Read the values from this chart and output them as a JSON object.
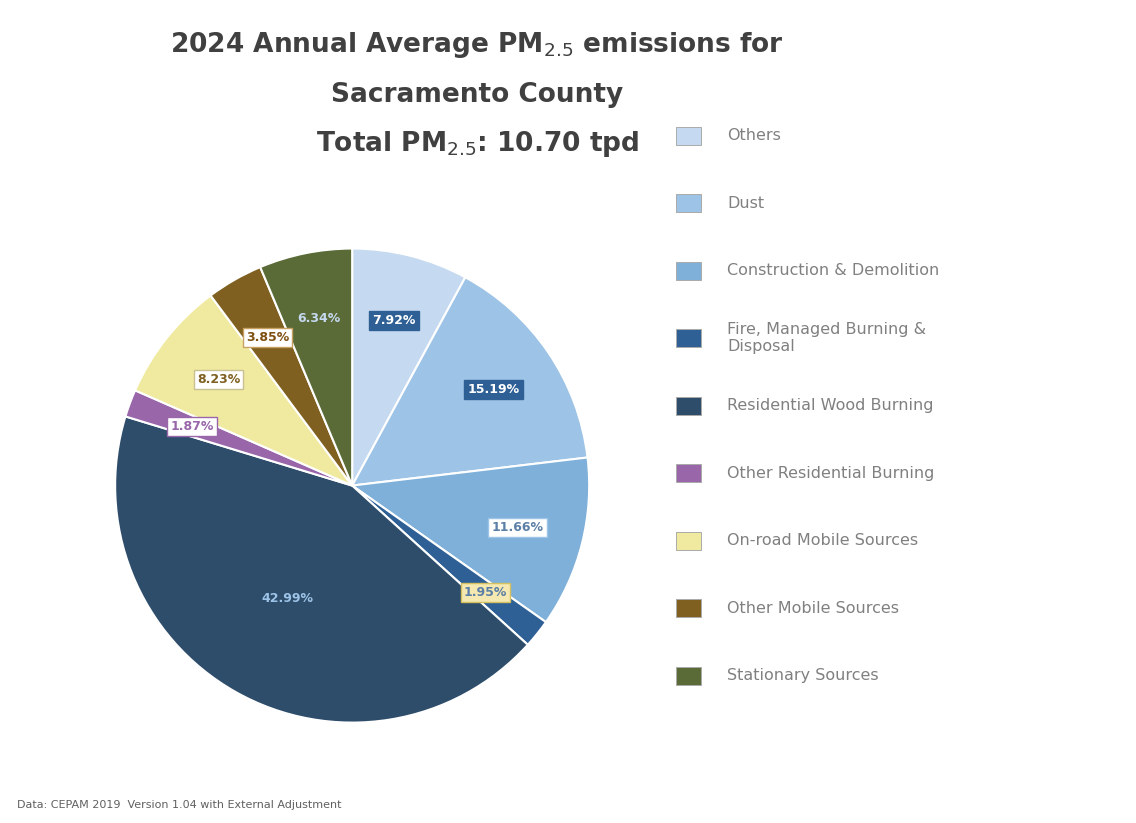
{
  "categories": [
    "Others",
    "Dust",
    "Construction & Demolition",
    "Fire, Managed Burning &\nDisposal",
    "Residential Wood Burning",
    "Other Residential Burning",
    "On-road Mobile Sources",
    "Other Mobile Sources",
    "Stationary Sources"
  ],
  "percentages": [
    7.92,
    15.19,
    11.66,
    1.95,
    42.99,
    1.87,
    8.23,
    3.85,
    6.34
  ],
  "colors": [
    "#C5D9F0",
    "#9DC3E6",
    "#7EB0D9",
    "#2E6096",
    "#2E4D6B",
    "#9966AA",
    "#F0EAA0",
    "#7F6020",
    "#5B6B38"
  ],
  "label_texts": [
    "7.92%",
    "15.19%",
    "11.66%",
    "1.95%",
    "42.99%",
    "1.87%",
    "8.23%",
    "3.85%",
    "6.34%"
  ],
  "label_text_colors": [
    "#FFFFFF",
    "#FFFFFF",
    "#5B7FA6",
    "#5B7FA6",
    "#9DC3E6",
    "#9966AA",
    "#7F6020",
    "#7F5010",
    "#C5D9F0"
  ],
  "label_bg_colors": [
    "#2E6096",
    "#2E6096",
    "#FFFFFF",
    "#F5E8B0",
    null,
    "#FFFFFF",
    "#FFFFFF",
    "#FFFFFF",
    "#5B6B38"
  ],
  "label_border_colors": [
    "#2E6096",
    "#2E6096",
    "#9DC3E6",
    "#D4C060",
    null,
    "#9966AA",
    "#C8C090",
    "#C8A060",
    "#5B6B38"
  ],
  "label_radii": [
    0.72,
    0.72,
    0.72,
    0.72,
    0.55,
    0.72,
    0.72,
    0.72,
    0.72
  ],
  "legend_entries": [
    [
      "Others",
      "#C5D9F0"
    ],
    [
      "Dust",
      "#9DC3E6"
    ],
    [
      "Construction & Demolition",
      "#7EB0D9"
    ],
    [
      "Fire, Managed Burning &\nDisposal",
      "#2E6096"
    ],
    [
      "Residential Wood Burning",
      "#2E4D6B"
    ],
    [
      "Other Residential Burning",
      "#9966AA"
    ],
    [
      "On-road Mobile Sources",
      "#F0EAA0"
    ],
    [
      "Other Mobile Sources",
      "#7F6020"
    ],
    [
      "Stationary Sources",
      "#5B6B38"
    ]
  ],
  "footnote": "Data: CEPAM 2019  Version 1.04 with External Adjustment",
  "background_color": "#FFFFFF",
  "title_color": "#404040",
  "legend_text_color": "#808080"
}
